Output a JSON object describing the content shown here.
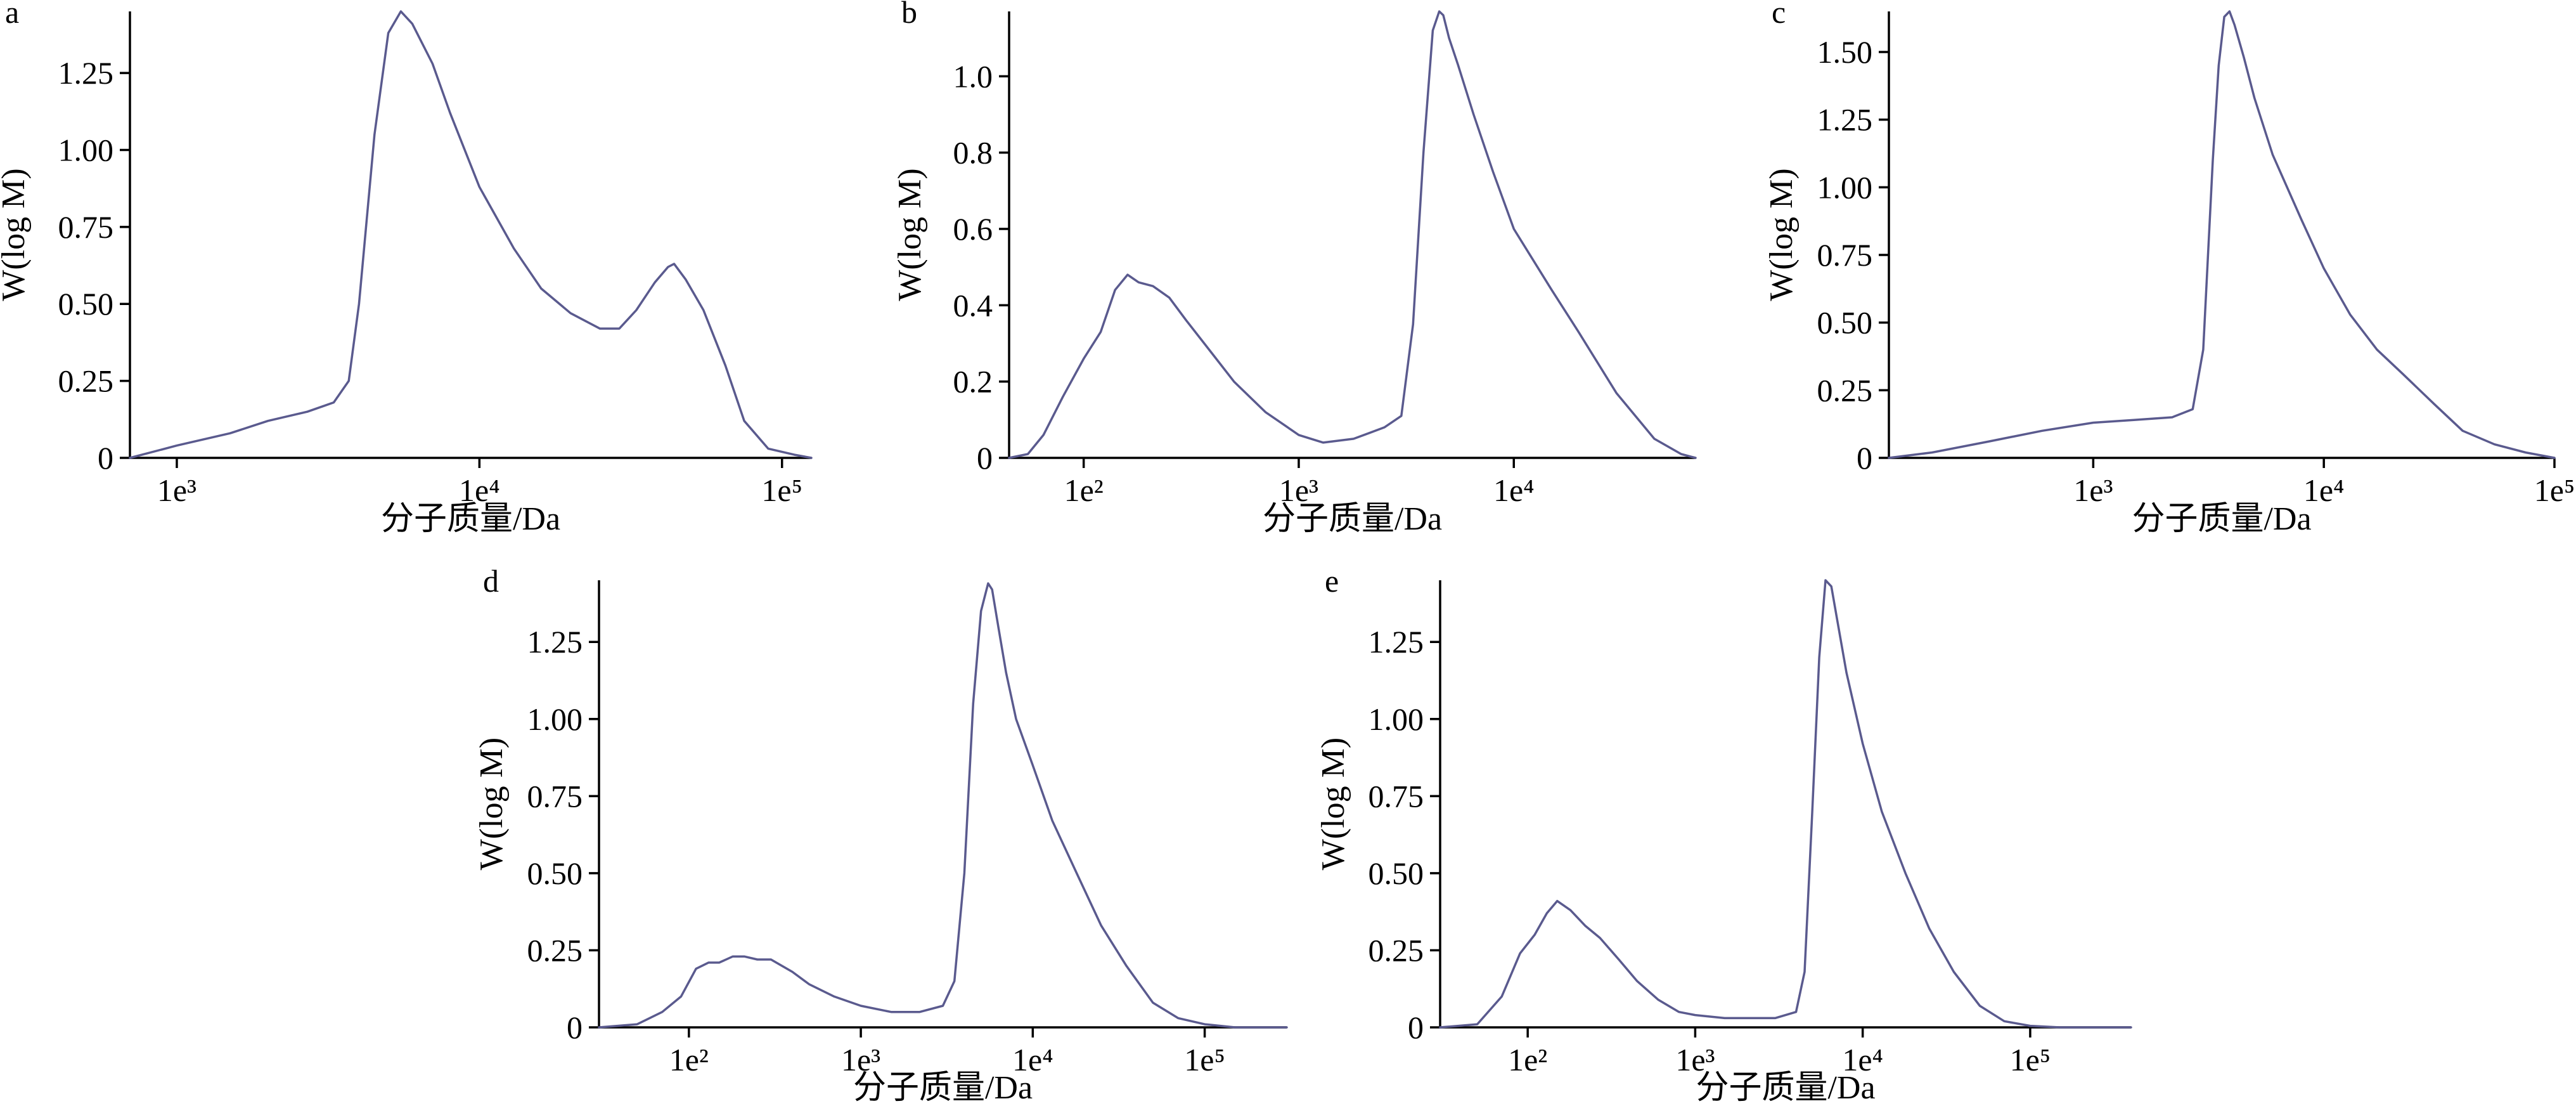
{
  "colors": {
    "line": "#5a5a8e",
    "axis": "#000000"
  },
  "chart_data": [
    {
      "panel": "a",
      "type": "line",
      "xscale": "log",
      "xlabel": "分子质量/Da",
      "ylabel": "W(log M)",
      "xlim": [
        700,
        125000
      ],
      "ylim": [
        0,
        1.45
      ],
      "xticks": [
        1000,
        10000,
        100000
      ],
      "xtick_labels": [
        "1e³",
        "1e⁴",
        "1e⁵"
      ],
      "yticks": [
        0,
        0.25,
        0.5,
        0.75,
        1.0,
        1.25
      ],
      "ytick_labels": [
        "0",
        "0.25",
        "0.50",
        "0.75",
        "1.00",
        "1.25"
      ],
      "x": [
        700,
        1000,
        1500,
        2000,
        2700,
        3300,
        3700,
        4000,
        4500,
        5000,
        5500,
        6000,
        7000,
        8000,
        10000,
        13000,
        16000,
        20000,
        25000,
        29000,
        33000,
        38000,
        42000,
        44000,
        48000,
        55000,
        65000,
        75000,
        90000,
        110000,
        125000
      ],
      "y": [
        0.0,
        0.04,
        0.08,
        0.12,
        0.15,
        0.18,
        0.25,
        0.5,
        1.05,
        1.38,
        1.45,
        1.41,
        1.28,
        1.12,
        0.88,
        0.68,
        0.55,
        0.47,
        0.42,
        0.42,
        0.48,
        0.57,
        0.62,
        0.63,
        0.58,
        0.48,
        0.3,
        0.12,
        0.03,
        0.01,
        0.0
      ]
    },
    {
      "panel": "b",
      "type": "line",
      "xscale": "log",
      "xlabel": "分子质量/Da",
      "ylabel": "W(log M)",
      "xlim": [
        45,
        70000
      ],
      "ylim": [
        0,
        1.17
      ],
      "xticks": [
        100,
        1000,
        10000
      ],
      "xtick_labels": [
        "1e²",
        "1e³",
        "1e⁴"
      ],
      "yticks": [
        0,
        0.2,
        0.4,
        0.6,
        0.8,
        1.0
      ],
      "ytick_labels": [
        "0",
        "0.2",
        "0.4",
        "0.6",
        "0.8",
        "1.0"
      ],
      "x": [
        45,
        55,
        65,
        80,
        100,
        120,
        140,
        160,
        180,
        210,
        250,
        300,
        400,
        500,
        700,
        1000,
        1300,
        1800,
        2500,
        3000,
        3400,
        3800,
        4200,
        4500,
        4700,
        5000,
        5500,
        6500,
        8000,
        10000,
        15000,
        20000,
        30000,
        45000,
        60000,
        70000
      ],
      "y": [
        0.0,
        0.01,
        0.06,
        0.16,
        0.26,
        0.33,
        0.44,
        0.48,
        0.46,
        0.45,
        0.42,
        0.36,
        0.27,
        0.2,
        0.12,
        0.06,
        0.04,
        0.05,
        0.08,
        0.11,
        0.35,
        0.8,
        1.12,
        1.17,
        1.16,
        1.1,
        1.03,
        0.9,
        0.75,
        0.6,
        0.44,
        0.33,
        0.17,
        0.05,
        0.01,
        0.0
      ]
    },
    {
      "panel": "c",
      "type": "line",
      "xscale": "log",
      "xlabel": "分子质量/Da",
      "ylabel": "W(log M)",
      "xlim": [
        130,
        100000
      ],
      "ylim": [
        0,
        1.65
      ],
      "xticks": [
        1000,
        10000,
        100000
      ],
      "xtick_labels": [
        "1e³",
        "1e⁴",
        "1e⁵"
      ],
      "yticks": [
        0,
        0.25,
        0.5,
        0.75,
        1.0,
        1.25,
        1.5
      ],
      "ytick_labels": [
        "0",
        "0.25",
        "0.50",
        "0.75",
        "1.00",
        "1.25",
        "1.50"
      ],
      "x": [
        130,
        200,
        350,
        600,
        1000,
        1500,
        2200,
        2700,
        3000,
        3300,
        3500,
        3700,
        3900,
        4100,
        4500,
        5000,
        6000,
        8000,
        10000,
        13000,
        17000,
        22000,
        30000,
        40000,
        55000,
        75000,
        100000
      ],
      "y": [
        0.0,
        0.02,
        0.06,
        0.1,
        0.13,
        0.14,
        0.15,
        0.18,
        0.4,
        1.1,
        1.45,
        1.63,
        1.65,
        1.6,
        1.48,
        1.33,
        1.12,
        0.88,
        0.7,
        0.53,
        0.4,
        0.31,
        0.2,
        0.1,
        0.05,
        0.02,
        0.0
      ]
    },
    {
      "panel": "d",
      "type": "line",
      "xscale": "log",
      "xlabel": "分子质量/Da",
      "ylabel": "W(log M)",
      "xlim": [
        30,
        300000
      ],
      "ylim": [
        0,
        1.45
      ],
      "xticks": [
        100,
        1000,
        10000,
        100000
      ],
      "xtick_labels": [
        "1e²",
        "1e³",
        "1e⁴",
        "1e⁵"
      ],
      "yticks": [
        0,
        0.25,
        0.5,
        0.75,
        1.0,
        1.25
      ],
      "ytick_labels": [
        "0",
        "0.25",
        "0.50",
        "0.75",
        "1.00",
        "1.25"
      ],
      "x": [
        30,
        50,
        70,
        90,
        110,
        130,
        150,
        180,
        210,
        250,
        300,
        400,
        500,
        700,
        1000,
        1500,
        2200,
        3000,
        3500,
        4000,
        4500,
        5000,
        5500,
        5800,
        6300,
        7000,
        8000,
        10000,
        13000,
        18000,
        25000,
        35000,
        50000,
        70000,
        100000,
        150000,
        200000,
        300000
      ],
      "y": [
        0.0,
        0.01,
        0.05,
        0.1,
        0.19,
        0.21,
        0.21,
        0.23,
        0.23,
        0.22,
        0.22,
        0.18,
        0.14,
        0.1,
        0.07,
        0.05,
        0.05,
        0.07,
        0.15,
        0.5,
        1.05,
        1.35,
        1.44,
        1.42,
        1.3,
        1.15,
        1.0,
        0.85,
        0.67,
        0.5,
        0.33,
        0.2,
        0.08,
        0.03,
        0.01,
        0.0,
        0.0,
        0.0
      ]
    },
    {
      "panel": "e",
      "type": "line",
      "xscale": "log",
      "xlabel": "分子质量/Da",
      "ylabel": "W(log M)",
      "xlim": [
        30,
        400000
      ],
      "ylim": [
        0,
        1.45
      ],
      "xticks": [
        100,
        1000,
        10000,
        100000
      ],
      "xtick_labels": [
        "1e²",
        "1e³",
        "1e⁴",
        "1e⁵"
      ],
      "yticks": [
        0,
        0.25,
        0.5,
        0.75,
        1.0,
        1.25
      ],
      "ytick_labels": [
        "0",
        "0.25",
        "0.50",
        "0.75",
        "1.00",
        "1.25"
      ],
      "x": [
        30,
        50,
        70,
        90,
        110,
        130,
        150,
        180,
        220,
        270,
        350,
        450,
        600,
        800,
        1000,
        1500,
        2200,
        3000,
        4000,
        4500,
        5000,
        5500,
        6000,
        6500,
        7000,
        8000,
        10000,
        13000,
        18000,
        25000,
        35000,
        50000,
        70000,
        100000,
        150000,
        250000,
        400000
      ],
      "y": [
        0.0,
        0.01,
        0.1,
        0.24,
        0.3,
        0.37,
        0.41,
        0.38,
        0.33,
        0.29,
        0.22,
        0.15,
        0.09,
        0.05,
        0.04,
        0.03,
        0.03,
        0.03,
        0.05,
        0.18,
        0.7,
        1.2,
        1.45,
        1.43,
        1.33,
        1.15,
        0.92,
        0.7,
        0.5,
        0.32,
        0.18,
        0.07,
        0.02,
        0.005,
        0.0,
        0.0,
        0.0
      ]
    }
  ]
}
